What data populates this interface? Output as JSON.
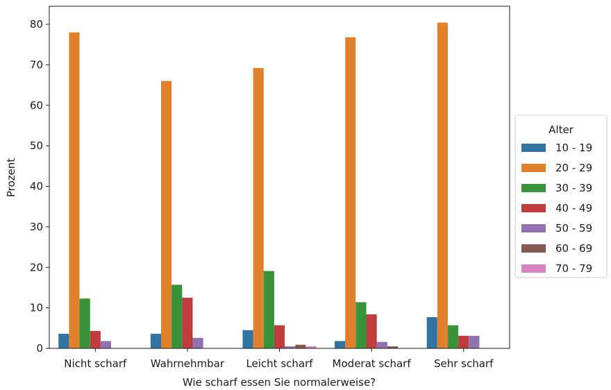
{
  "chart_data": {
    "type": "bar",
    "xlabel": "Wie scharf essen Sie normalerweise?",
    "ylabel": "Prozent",
    "ylim": [
      0,
      85
    ],
    "yticks": [
      0,
      10,
      20,
      30,
      40,
      50,
      60,
      70,
      80
    ],
    "grid": false,
    "legend": {
      "title": "Alter",
      "placement": "right"
    },
    "categories": [
      "Nicht scharf",
      "Wahrnehmbar",
      "Leicht scharf",
      "Moderat scharf",
      "Sehr scharf"
    ],
    "series": [
      {
        "name": "10 - 19",
        "color": "#3274a1",
        "values": [
          3.6,
          3.6,
          4.5,
          1.8,
          7.7
        ]
      },
      {
        "name": "20 - 29",
        "color": "#e1812c",
        "values": [
          78.0,
          66.0,
          69.2,
          76.8,
          80.4
        ]
      },
      {
        "name": "30 - 39",
        "color": "#3a923a",
        "values": [
          12.3,
          15.7,
          19.1,
          11.4,
          5.7
        ]
      },
      {
        "name": "40 - 49",
        "color": "#c03d3e",
        "values": [
          4.3,
          12.5,
          5.7,
          8.4,
          3.1
        ]
      },
      {
        "name": "50 - 59",
        "color": "#9372b2",
        "values": [
          1.8,
          2.6,
          0.5,
          1.6,
          3.1
        ]
      },
      {
        "name": "60 - 69",
        "color": "#845b53",
        "values": [
          0,
          0,
          0.9,
          0.5,
          0
        ]
      },
      {
        "name": "70 - 79",
        "color": "#d684bd",
        "values": [
          0,
          0,
          0.5,
          0,
          0
        ]
      }
    ]
  }
}
